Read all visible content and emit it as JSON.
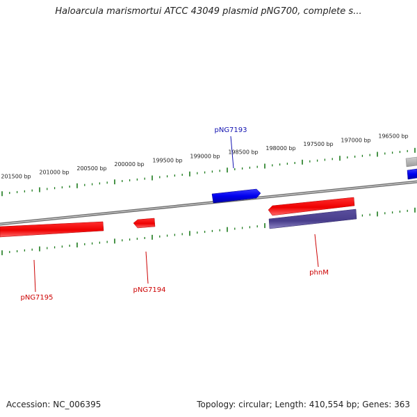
{
  "title": "Haloarcula marismortui ATCC 43049 plasmid pNG700, complete s...",
  "footer": {
    "accession_label": "Accession:",
    "accession": "NC_006395",
    "topology_label": "Topology:",
    "topology": "circular",
    "length_label": "Length:",
    "length": "410,554 bp",
    "genes_label": "Genes:",
    "genes": "363"
  },
  "colors": {
    "backbone": "#8a8a8a",
    "tick": "#1a7a1a",
    "forward_gene": "#0000ee",
    "reverse_gene": "#ee0000",
    "reverse_gene_alt": "#483d8b",
    "label_blue": "#1010b0",
    "label_red": "#cc0000",
    "gray_feature": "#b0b0b0"
  },
  "scale_labels": [
    "201500 bp",
    "201000 bp",
    "200500 bp",
    "200000 bp",
    "199500 bp",
    "199000 bp",
    "198500 bp",
    "198000 bp",
    "197500 bp",
    "197000 bp",
    "196500 bp"
  ],
  "features": [
    {
      "id": "pNG7193",
      "label": "pNG7193",
      "strand": "forward",
      "color": "forward_gene"
    },
    {
      "id": "pNG7195",
      "label": "pNG7195",
      "strand": "reverse",
      "color": "reverse_gene"
    },
    {
      "id": "pNG7194",
      "label": "pNG7194",
      "strand": "reverse",
      "color": "reverse_gene"
    },
    {
      "id": "phnM-red",
      "label": "",
      "strand": "reverse",
      "color": "reverse_gene"
    },
    {
      "id": "phnM",
      "label": "phnM",
      "strand": "reverse",
      "color": "reverse_gene_alt"
    },
    {
      "id": "edge-blue",
      "label": "",
      "strand": "forward",
      "color": "forward_gene"
    },
    {
      "id": "edge-gray",
      "label": "",
      "strand": "forward",
      "color": "gray_feature"
    }
  ]
}
